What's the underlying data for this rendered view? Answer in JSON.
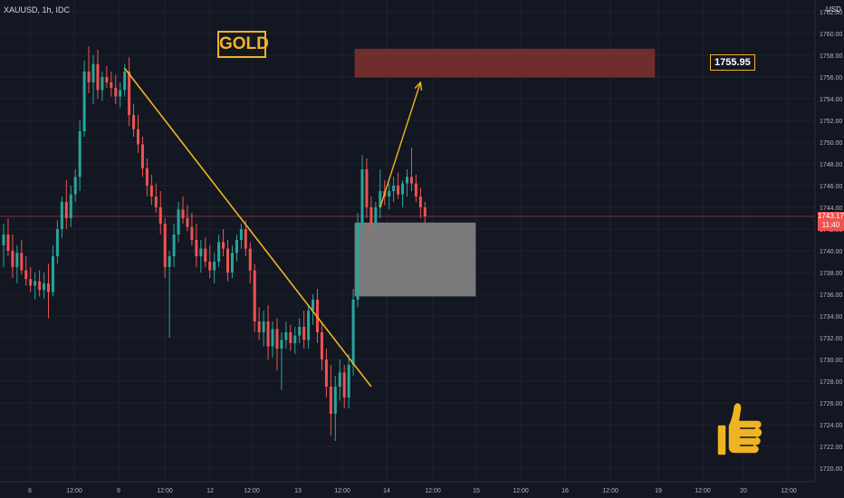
{
  "header": {
    "symbol": "XAUUSD, 1h, IDC",
    "currency": "USD"
  },
  "badge": {
    "label": "GOLD"
  },
  "target": {
    "label": "1755.95"
  },
  "last_price": {
    "value": "1743.17",
    "countdown": "11:40"
  },
  "colors": {
    "up": "#26a69a",
    "down": "#ef5350",
    "trendline": "#f0b323",
    "supply_zone": "#7a3030",
    "demand_zone": "#808080",
    "background": "#131722"
  },
  "icons": {
    "thumbs_up": "thumbs-up-icon"
  },
  "chart_data": {
    "type": "candlestick",
    "title": "",
    "y_axis": {
      "range": [
        1719,
        1764
      ],
      "ticks": [
        "1762.00",
        "1760.00",
        "1758.00",
        "1756.00",
        "1754.00",
        "1752.00",
        "1750.00",
        "1748.00",
        "1746.00",
        "1744.00",
        "1742.00",
        "1740.00",
        "1738.00",
        "1736.00",
        "1734.00",
        "1732.00",
        "1730.00",
        "1728.00",
        "1726.00",
        "1724.00",
        "1722.00",
        "1720.00"
      ]
    },
    "x_axis": {
      "ticks": [
        "8",
        "12:00",
        "9",
        "12:00",
        "12",
        "12:00",
        "13",
        "12:00",
        "14",
        "12:00",
        "15",
        "12:00",
        "16",
        "12:00",
        "19",
        "12:00",
        "20",
        "12:00"
      ]
    },
    "grid": true,
    "current_price": 1743.17,
    "candles": [
      {
        "o": 1740.5,
        "h": 1742.5,
        "l": 1738.5,
        "c": 1741.5
      },
      {
        "o": 1741.5,
        "h": 1743.0,
        "l": 1739.5,
        "c": 1740.0
      },
      {
        "o": 1740.0,
        "h": 1741.5,
        "l": 1737.5,
        "c": 1738.5
      },
      {
        "o": 1738.5,
        "h": 1740.5,
        "l": 1737.0,
        "c": 1739.8
      },
      {
        "o": 1739.8,
        "h": 1741.0,
        "l": 1737.8,
        "c": 1738.2
      },
      {
        "o": 1738.2,
        "h": 1739.5,
        "l": 1736.8,
        "c": 1737.4
      },
      {
        "o": 1737.4,
        "h": 1738.5,
        "l": 1736.2,
        "c": 1736.8
      },
      {
        "o": 1736.8,
        "h": 1738.0,
        "l": 1735.5,
        "c": 1737.2
      },
      {
        "o": 1737.2,
        "h": 1738.2,
        "l": 1735.8,
        "c": 1736.4
      },
      {
        "o": 1736.4,
        "h": 1738.0,
        "l": 1735.6,
        "c": 1737.0
      },
      {
        "o": 1737.0,
        "h": 1738.8,
        "l": 1733.8,
        "c": 1736.2
      },
      {
        "o": 1736.2,
        "h": 1740.5,
        "l": 1735.8,
        "c": 1739.5
      },
      {
        "o": 1739.5,
        "h": 1742.8,
        "l": 1738.8,
        "c": 1742.0
      },
      {
        "o": 1742.0,
        "h": 1745.0,
        "l": 1741.2,
        "c": 1744.5
      },
      {
        "o": 1744.5,
        "h": 1746.5,
        "l": 1742.0,
        "c": 1743.0
      },
      {
        "o": 1743.0,
        "h": 1746.0,
        "l": 1742.2,
        "c": 1745.2
      },
      {
        "o": 1745.2,
        "h": 1747.5,
        "l": 1744.5,
        "c": 1746.8
      },
      {
        "o": 1746.8,
        "h": 1752.0,
        "l": 1745.5,
        "c": 1751.0
      },
      {
        "o": 1751.0,
        "h": 1757.5,
        "l": 1750.5,
        "c": 1756.5
      },
      {
        "o": 1756.5,
        "h": 1758.8,
        "l": 1754.5,
        "c": 1755.5
      },
      {
        "o": 1755.5,
        "h": 1758.0,
        "l": 1753.5,
        "c": 1757.2
      },
      {
        "o": 1757.2,
        "h": 1758.5,
        "l": 1754.0,
        "c": 1754.8
      },
      {
        "o": 1754.8,
        "h": 1756.5,
        "l": 1753.8,
        "c": 1756.0
      },
      {
        "o": 1756.0,
        "h": 1757.0,
        "l": 1755.0,
        "c": 1755.5
      },
      {
        "o": 1755.5,
        "h": 1756.5,
        "l": 1754.2,
        "c": 1755.0
      },
      {
        "o": 1755.0,
        "h": 1756.2,
        "l": 1753.5,
        "c": 1754.2
      },
      {
        "o": 1754.2,
        "h": 1755.5,
        "l": 1753.2,
        "c": 1754.8
      },
      {
        "o": 1754.8,
        "h": 1757.2,
        "l": 1754.2,
        "c": 1756.5
      },
      {
        "o": 1756.5,
        "h": 1757.8,
        "l": 1751.5,
        "c": 1752.5
      },
      {
        "o": 1752.5,
        "h": 1753.5,
        "l": 1750.5,
        "c": 1751.2
      },
      {
        "o": 1751.2,
        "h": 1752.5,
        "l": 1749.0,
        "c": 1749.8
      },
      {
        "o": 1749.8,
        "h": 1750.5,
        "l": 1746.8,
        "c": 1747.6
      },
      {
        "o": 1747.6,
        "h": 1748.5,
        "l": 1745.0,
        "c": 1746.0
      },
      {
        "o": 1746.0,
        "h": 1747.0,
        "l": 1744.2,
        "c": 1745.0
      },
      {
        "o": 1745.0,
        "h": 1746.2,
        "l": 1743.5,
        "c": 1744.0
      },
      {
        "o": 1744.0,
        "h": 1745.5,
        "l": 1741.5,
        "c": 1742.5
      },
      {
        "o": 1742.5,
        "h": 1743.0,
        "l": 1737.5,
        "c": 1738.5
      },
      {
        "o": 1738.5,
        "h": 1740.0,
        "l": 1732.0,
        "c": 1739.5
      },
      {
        "o": 1739.5,
        "h": 1742.5,
        "l": 1738.5,
        "c": 1741.5
      },
      {
        "o": 1741.5,
        "h": 1744.5,
        "l": 1740.8,
        "c": 1743.8
      },
      {
        "o": 1743.8,
        "h": 1745.0,
        "l": 1742.5,
        "c": 1743.0
      },
      {
        "o": 1743.0,
        "h": 1744.2,
        "l": 1741.8,
        "c": 1742.2
      },
      {
        "o": 1742.2,
        "h": 1743.5,
        "l": 1740.5,
        "c": 1741.0
      },
      {
        "o": 1741.0,
        "h": 1742.5,
        "l": 1738.5,
        "c": 1739.5
      },
      {
        "o": 1739.5,
        "h": 1741.0,
        "l": 1738.0,
        "c": 1740.2
      },
      {
        "o": 1740.2,
        "h": 1741.2,
        "l": 1738.5,
        "c": 1739.0
      },
      {
        "o": 1739.0,
        "h": 1740.5,
        "l": 1737.5,
        "c": 1738.2
      },
      {
        "o": 1738.2,
        "h": 1739.8,
        "l": 1737.0,
        "c": 1739.0
      },
      {
        "o": 1739.0,
        "h": 1741.5,
        "l": 1738.5,
        "c": 1740.8
      },
      {
        "o": 1740.8,
        "h": 1742.0,
        "l": 1739.5,
        "c": 1740.2
      },
      {
        "o": 1740.2,
        "h": 1741.0,
        "l": 1737.2,
        "c": 1738.0
      },
      {
        "o": 1738.0,
        "h": 1740.5,
        "l": 1737.5,
        "c": 1739.8
      },
      {
        "o": 1739.8,
        "h": 1741.5,
        "l": 1739.0,
        "c": 1741.0
      },
      {
        "o": 1741.0,
        "h": 1742.5,
        "l": 1740.2,
        "c": 1742.0
      },
      {
        "o": 1742.0,
        "h": 1742.8,
        "l": 1739.5,
        "c": 1740.2
      },
      {
        "o": 1740.2,
        "h": 1740.8,
        "l": 1737.0,
        "c": 1738.2
      },
      {
        "o": 1738.2,
        "h": 1738.8,
        "l": 1732.5,
        "c": 1733.5
      },
      {
        "o": 1733.5,
        "h": 1734.8,
        "l": 1731.8,
        "c": 1732.5
      },
      {
        "o": 1732.5,
        "h": 1734.5,
        "l": 1731.2,
        "c": 1733.5
      },
      {
        "o": 1733.5,
        "h": 1735.0,
        "l": 1730.0,
        "c": 1731.2
      },
      {
        "o": 1731.2,
        "h": 1733.5,
        "l": 1730.2,
        "c": 1732.8
      },
      {
        "o": 1732.8,
        "h": 1733.8,
        "l": 1729.0,
        "c": 1731.0
      },
      {
        "o": 1731.0,
        "h": 1732.5,
        "l": 1727.2,
        "c": 1731.8
      },
      {
        "o": 1731.8,
        "h": 1733.5,
        "l": 1731.0,
        "c": 1732.5
      },
      {
        "o": 1732.5,
        "h": 1733.2,
        "l": 1730.8,
        "c": 1731.5
      },
      {
        "o": 1731.5,
        "h": 1733.0,
        "l": 1730.5,
        "c": 1732.2
      },
      {
        "o": 1732.2,
        "h": 1733.8,
        "l": 1731.5,
        "c": 1733.0
      },
      {
        "o": 1733.0,
        "h": 1734.5,
        "l": 1731.0,
        "c": 1731.8
      },
      {
        "o": 1731.8,
        "h": 1735.0,
        "l": 1731.0,
        "c": 1734.5
      },
      {
        "o": 1734.5,
        "h": 1736.0,
        "l": 1733.2,
        "c": 1735.5
      },
      {
        "o": 1735.5,
        "h": 1736.5,
        "l": 1731.5,
        "c": 1732.5
      },
      {
        "o": 1732.5,
        "h": 1733.5,
        "l": 1729.0,
        "c": 1730.0
      },
      {
        "o": 1730.0,
        "h": 1731.0,
        "l": 1726.5,
        "c": 1727.5
      },
      {
        "o": 1727.5,
        "h": 1729.5,
        "l": 1723.0,
        "c": 1725.0
      },
      {
        "o": 1725.0,
        "h": 1728.5,
        "l": 1722.5,
        "c": 1727.5
      },
      {
        "o": 1727.5,
        "h": 1730.0,
        "l": 1726.2,
        "c": 1728.8
      },
      {
        "o": 1728.8,
        "h": 1729.5,
        "l": 1725.5,
        "c": 1726.5
      },
      {
        "o": 1726.5,
        "h": 1730.5,
        "l": 1725.5,
        "c": 1729.5
      },
      {
        "o": 1729.5,
        "h": 1736.5,
        "l": 1728.5,
        "c": 1735.5
      },
      {
        "o": 1735.5,
        "h": 1743.5,
        "l": 1734.8,
        "c": 1742.5
      },
      {
        "o": 1742.5,
        "h": 1748.8,
        "l": 1741.5,
        "c": 1747.5
      },
      {
        "o": 1747.5,
        "h": 1748.5,
        "l": 1743.0,
        "c": 1744.0
      },
      {
        "o": 1744.0,
        "h": 1745.0,
        "l": 1741.5,
        "c": 1742.5
      },
      {
        "o": 1742.5,
        "h": 1744.5,
        "l": 1741.8,
        "c": 1744.0
      },
      {
        "o": 1744.0,
        "h": 1747.5,
        "l": 1743.0,
        "c": 1745.5
      },
      {
        "o": 1745.5,
        "h": 1746.5,
        "l": 1744.2,
        "c": 1745.0
      },
      {
        "o": 1745.0,
        "h": 1746.2,
        "l": 1743.8,
        "c": 1745.5
      },
      {
        "o": 1745.5,
        "h": 1746.8,
        "l": 1744.5,
        "c": 1746.0
      },
      {
        "o": 1746.0,
        "h": 1747.2,
        "l": 1744.8,
        "c": 1745.2
      },
      {
        "o": 1745.2,
        "h": 1746.5,
        "l": 1744.0,
        "c": 1746.2
      },
      {
        "o": 1746.2,
        "h": 1747.5,
        "l": 1745.0,
        "c": 1746.8
      },
      {
        "o": 1746.8,
        "h": 1749.5,
        "l": 1745.5,
        "c": 1746.2
      },
      {
        "o": 1746.2,
        "h": 1747.0,
        "l": 1744.5,
        "c": 1745.0
      },
      {
        "o": 1745.0,
        "h": 1745.8,
        "l": 1743.0,
        "c": 1744.0
      },
      {
        "o": 1744.0,
        "h": 1744.5,
        "l": 1742.5,
        "c": 1743.17
      }
    ],
    "drawings": [
      {
        "type": "trendline",
        "from_candle": 27,
        "from_price": 1756.8,
        "to_candle": 82,
        "to_price": 1727.5
      },
      {
        "type": "arrow",
        "from_candle": 84,
        "from_price": 1744.0,
        "to_candle": 93,
        "to_price": 1755.5
      },
      {
        "type": "zone",
        "name": "supply",
        "from_candle": 78,
        "to_candle": 145,
        "top": 1758.6,
        "bottom": 1755.95
      },
      {
        "type": "zone",
        "name": "demand",
        "from_candle": 78,
        "to_candle": 105,
        "top": 1742.6,
        "bottom": 1735.8
      }
    ]
  }
}
